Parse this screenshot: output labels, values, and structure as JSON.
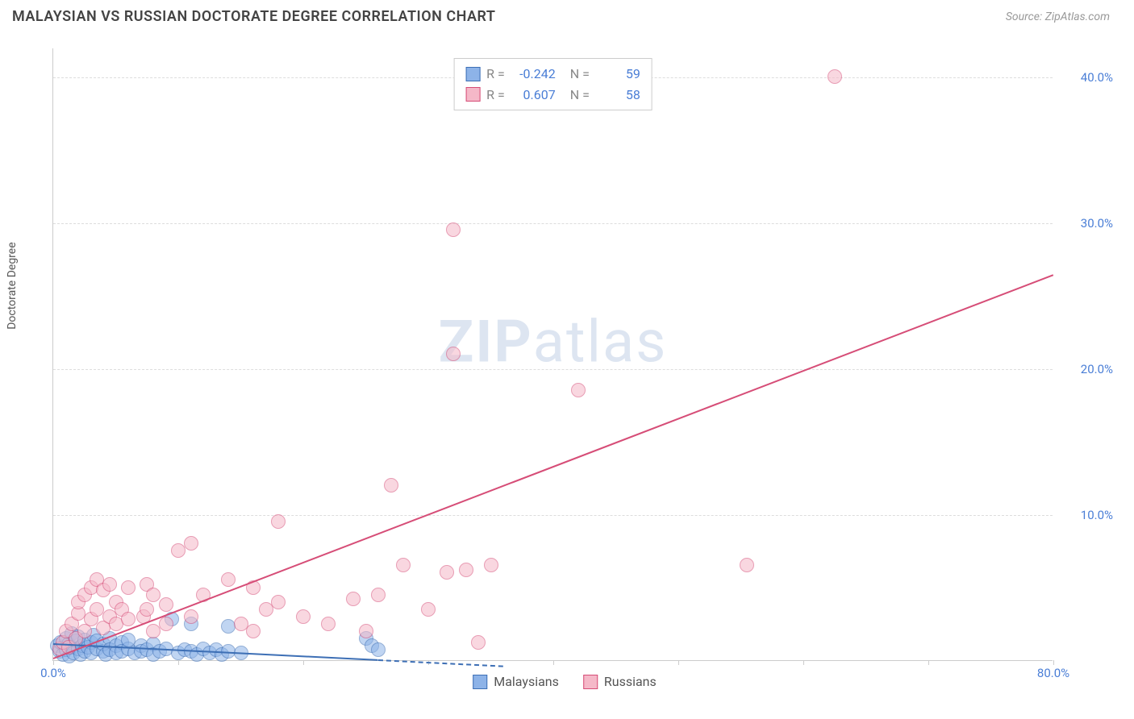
{
  "title": "MALAYSIAN VS RUSSIAN DOCTORATE DEGREE CORRELATION CHART",
  "source": "Source: ZipAtlas.com",
  "ylabel": "Doctorate Degree",
  "watermark_zip": "ZIP",
  "watermark_atlas": "atlas",
  "chart": {
    "type": "scatter",
    "xlim": [
      0,
      80
    ],
    "ylim": [
      0,
      42
    ],
    "xticks": [
      {
        "v": 0,
        "label": "0.0%",
        "show_label": true
      },
      {
        "v": 10,
        "label": "",
        "show_label": false
      },
      {
        "v": 20,
        "label": "",
        "show_label": false
      },
      {
        "v": 30,
        "label": "",
        "show_label": false
      },
      {
        "v": 40,
        "label": "",
        "show_label": false
      },
      {
        "v": 50,
        "label": "",
        "show_label": false
      },
      {
        "v": 60,
        "label": "",
        "show_label": false
      },
      {
        "v": 70,
        "label": "",
        "show_label": false
      },
      {
        "v": 80,
        "label": "80.0%",
        "show_label": true
      }
    ],
    "yticks": [
      {
        "v": 10,
        "label": "10.0%"
      },
      {
        "v": 20,
        "label": "20.0%"
      },
      {
        "v": 30,
        "label": "30.0%"
      },
      {
        "v": 40,
        "label": "40.0%"
      }
    ],
    "background_color": "#ffffff",
    "grid_color": "#dddddd",
    "axis_color": "#cccccc",
    "tick_label_color": "#4a7ed6",
    "marker_radius": 9,
    "marker_opacity": 0.55,
    "series": [
      {
        "name": "Malaysians",
        "color_fill": "#8db3e8",
        "color_stroke": "#3d6fb5",
        "R": "-0.242",
        "N": "59",
        "trend": {
          "x1": 0,
          "y1": 1.2,
          "x2": 26,
          "y2": 0.1,
          "dash_extend_x": 36
        },
        "points": [
          [
            0.3,
            1.0
          ],
          [
            0.5,
            0.6
          ],
          [
            0.6,
            1.2
          ],
          [
            0.8,
            0.4
          ],
          [
            1.0,
            1.5
          ],
          [
            1.0,
            0.7
          ],
          [
            1.2,
            1.1
          ],
          [
            1.3,
            0.3
          ],
          [
            1.5,
            1.8
          ],
          [
            1.5,
            0.9
          ],
          [
            1.6,
            0.5
          ],
          [
            1.8,
            1.3
          ],
          [
            2.0,
            0.8
          ],
          [
            2.0,
            1.6
          ],
          [
            2.2,
            0.4
          ],
          [
            2.3,
            1.0
          ],
          [
            2.5,
            0.6
          ],
          [
            2.5,
            1.4
          ],
          [
            2.8,
            0.9
          ],
          [
            3.0,
            1.2
          ],
          [
            3.0,
            0.5
          ],
          [
            3.2,
            1.7
          ],
          [
            3.5,
            0.8
          ],
          [
            3.5,
            1.3
          ],
          [
            4.0,
            0.6
          ],
          [
            4.0,
            1.1
          ],
          [
            4.2,
            0.4
          ],
          [
            4.5,
            1.5
          ],
          [
            4.5,
            0.7
          ],
          [
            5.0,
            1.0
          ],
          [
            5.0,
            0.5
          ],
          [
            5.5,
            1.2
          ],
          [
            5.5,
            0.6
          ],
          [
            6.0,
            0.8
          ],
          [
            6.0,
            1.4
          ],
          [
            6.5,
            0.5
          ],
          [
            7.0,
            1.0
          ],
          [
            7.0,
            0.6
          ],
          [
            7.5,
            0.7
          ],
          [
            8.0,
            1.1
          ],
          [
            8.0,
            0.4
          ],
          [
            8.5,
            0.6
          ],
          [
            9.0,
            0.8
          ],
          [
            9.5,
            2.8
          ],
          [
            10.0,
            0.5
          ],
          [
            10.5,
            0.7
          ],
          [
            11.0,
            0.6
          ],
          [
            11.0,
            2.5
          ],
          [
            11.5,
            0.4
          ],
          [
            12.0,
            0.8
          ],
          [
            12.5,
            0.5
          ],
          [
            13.0,
            0.7
          ],
          [
            13.5,
            0.4
          ],
          [
            14.0,
            0.6
          ],
          [
            14.0,
            2.3
          ],
          [
            15.0,
            0.5
          ],
          [
            25.0,
            1.5
          ],
          [
            25.5,
            1.0
          ],
          [
            26.0,
            0.7
          ]
        ]
      },
      {
        "name": "Russians",
        "color_fill": "#f5b8c8",
        "color_stroke": "#d64d77",
        "R": "0.607",
        "N": "58",
        "trend": {
          "x1": 0,
          "y1": 0.2,
          "x2": 80,
          "y2": 26.5
        },
        "points": [
          [
            0.5,
            0.8
          ],
          [
            0.8,
            1.2
          ],
          [
            1.0,
            2.0
          ],
          [
            1.2,
            0.9
          ],
          [
            1.5,
            2.5
          ],
          [
            1.8,
            1.5
          ],
          [
            2.0,
            3.2
          ],
          [
            2.0,
            4.0
          ],
          [
            2.5,
            2.0
          ],
          [
            2.5,
            4.5
          ],
          [
            3.0,
            5.0
          ],
          [
            3.0,
            2.8
          ],
          [
            3.5,
            3.5
          ],
          [
            3.5,
            5.5
          ],
          [
            4.0,
            4.8
          ],
          [
            4.0,
            2.2
          ],
          [
            4.5,
            3.0
          ],
          [
            4.5,
            5.2
          ],
          [
            5.0,
            2.5
          ],
          [
            5.0,
            4.0
          ],
          [
            5.5,
            3.5
          ],
          [
            6.0,
            2.8
          ],
          [
            6.0,
            5.0
          ],
          [
            7.2,
            3.0
          ],
          [
            7.5,
            3.5
          ],
          [
            7.5,
            5.2
          ],
          [
            8.0,
            2.0
          ],
          [
            8.0,
            4.5
          ],
          [
            9.0,
            3.8
          ],
          [
            9.0,
            2.5
          ],
          [
            10.0,
            7.5
          ],
          [
            11.0,
            8.0
          ],
          [
            11.0,
            3.0
          ],
          [
            12.0,
            4.5
          ],
          [
            14.0,
            5.5
          ],
          [
            15.0,
            2.5
          ],
          [
            16.0,
            5.0
          ],
          [
            16.0,
            2.0
          ],
          [
            17.0,
            3.5
          ],
          [
            18.0,
            4.0
          ],
          [
            18.0,
            9.5
          ],
          [
            20.0,
            3.0
          ],
          [
            22.0,
            2.5
          ],
          [
            24.0,
            4.2
          ],
          [
            25.0,
            2.0
          ],
          [
            26.0,
            4.5
          ],
          [
            27.0,
            12.0
          ],
          [
            28.0,
            6.5
          ],
          [
            30.0,
            3.5
          ],
          [
            32.0,
            29.5
          ],
          [
            32.0,
            21.0
          ],
          [
            33.0,
            6.2
          ],
          [
            34.0,
            1.2
          ],
          [
            35.0,
            6.5
          ],
          [
            42.0,
            18.5
          ],
          [
            55.5,
            6.5
          ],
          [
            62.5,
            40.0
          ],
          [
            31.5,
            6.0
          ]
        ]
      }
    ]
  },
  "legend_bottom": [
    {
      "label": "Malaysians",
      "fill": "#8db3e8",
      "stroke": "#3d6fb5"
    },
    {
      "label": "Russians",
      "fill": "#f5b8c8",
      "stroke": "#d64d77"
    }
  ]
}
